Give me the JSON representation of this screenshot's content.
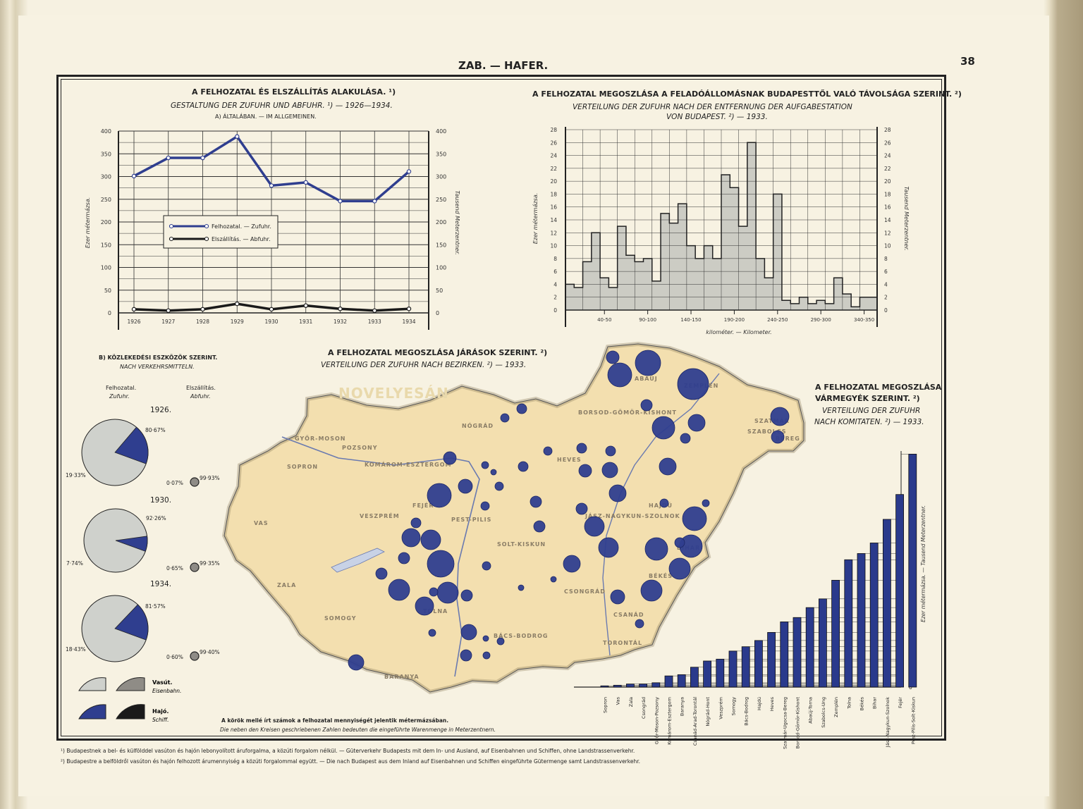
{
  "header": {
    "title": "ZAB. — HAFER.",
    "page_number": "38"
  },
  "line_chart": {
    "title": "A FELHOZATAL ÉS ELSZÁLLÍTÁS ALAKULÁSA. ¹)",
    "subtitle": "GESTALTUNG DER ZUFUHR UND ABFUHR. ¹) — 1926—1934.",
    "section": "A) ÁLTALÁBAN. — IM ALLGEMEINEN.",
    "ylabel_left": "Ezer métermázsa.",
    "ylabel_right": "Tausend Meterzentner."
  },
  "histogram": {
    "title": "A FELHOZATAL MEGOSZLÁSA A FELADÓÁLLOMÁSNAK BUDAPESTTŐL VALÓ TÁVOLSÁGA SZERINT. ²)",
    "subtitle1": "VERTEILUNG DER ZUFUHR NACH DER ENTFERNUNG DER AUFGABESTATION",
    "subtitle2": "VON BUDAPEST. ²) — 1933.",
    "ylabel_left": "Ezer métermázsa.",
    "ylabel_right": "Tausend Meterzentner.",
    "xlabel": "kilométer. — Kilometer."
  },
  "pies": {
    "title": "B) KÖZLEKEDÉSI ESZKÖZÖK SZERINT.",
    "subtitle": "NACH VERKEHRSMITTELN.",
    "col1": "Felhozatal.",
    "col1_de": "Zufuhr.",
    "col2": "Elszállítás.",
    "col2_de": "Abfuhr.",
    "legend": {
      "rail": "Vasút.",
      "rail_de": "Eisenbahn.",
      "ship": "Hajó.",
      "ship_de": "Schiff."
    }
  },
  "map": {
    "title": "A FELHOZATAL MEGOSZLÁSA JÁRÁSOK SZERINT. ²)",
    "subtitle": "VERTEILUNG DER ZUFUHR NACH BEZIRKEN. ²) — 1933.",
    "note1": "A körök mellé írt számok a felhozatal mennyiségét jelentik métermázsában.",
    "note2": "Die neben den Kreisen geschriebenen Zahlen bedeuten die eingeführte Warenmenge in Meterzentnern.",
    "regions": [
      "SOPRON",
      "GYŐR-MOSON",
      "POZSONY",
      "KOMÁROM-ESZTERGOM",
      "VESZPRÉM",
      "VAS",
      "ZALA",
      "SOMOGY",
      "BARANYA",
      "TOLNA",
      "FEJÉR",
      "PEST-PILIS",
      "SOLT-KISKUN",
      "NÓGRÁD",
      "HEVES",
      "BORSOD-GÖMÖR-KISHONT",
      "ZEMPLÉN",
      "SZABOLCS",
      "JÁSZ-NAGYKUN-SZOLNOK",
      "BÉKÉS",
      "CSONGRÁD",
      "CSANÁD",
      "TORONTÁL",
      "BIHAR",
      "HAJDÚ",
      "BÁCS-BODROG",
      "ABAÚJ",
      "BEREG",
      "SZATMÁR",
      "NOVELYESÁN"
    ]
  },
  "county_chart": {
    "title1": "A FELHOZATAL MEGOSZLÁSA",
    "title2": "VÁRMEGYÉK SZERINT. ²)",
    "subtitle1": "VERTEILUNG DER ZUFUHR",
    "subtitle2": "NACH KOMITATEN. ²) — 1933.",
    "ylabel": "Ezer métermázsa. — Tausend Meterzentner."
  },
  "footnotes": {
    "fn1": "¹) Budapestnek a bel- és külfölddel vasúton és hajón lebonyolított áruforgalma, a közúti forgalom nélkül. — Güterverkehr Budapests mit dem In- und Ausland, auf Eisenbahnen und Schiffen, ohne Landstrassenverkehr.",
    "fn2": "²) Budapestre a belföldről vasúton és hajón felhozott árumennyiség a közúti forgalommal együtt. — Die nach Budapest aus dem Inland auf Eisenbahnen und Schiffen eingeführte Gütermenge samt Landstrassenverkehr."
  },
  "chart_data": [
    {
      "type": "line",
      "x": [
        "1926",
        "1927",
        "1928",
        "1929",
        "1930",
        "1931",
        "1932",
        "1933",
        "1934"
      ],
      "series": [
        {
          "name": "Felhozatal. — Zufuhr.",
          "color": "#2f3e8f",
          "values": [
            301,
            341,
            341,
            388,
            280,
            287,
            246,
            246,
            311
          ]
        },
        {
          "name": "Elszállítás. — Abfuhr.",
          "color": "#1a1a1a",
          "values": [
            8,
            5,
            8,
            20,
            8,
            16,
            9,
            5,
            9
          ]
        }
      ],
      "yticks": [
        0,
        50,
        100,
        150,
        200,
        250,
        300,
        350,
        400
      ],
      "ylim": [
        0,
        400
      ]
    },
    {
      "type": "area",
      "x_tick_labels": [
        "40-50",
        "90-100",
        "140-150",
        "190-200",
        "240-250",
        "290-300",
        "340-350"
      ],
      "bins_km_start": [
        0,
        10,
        20,
        30,
        40,
        50,
        60,
        70,
        80,
        90,
        100,
        110,
        120,
        130,
        140,
        150,
        160,
        170,
        180,
        190,
        200,
        210,
        220,
        230,
        240,
        250,
        260,
        270,
        280,
        290,
        300,
        310,
        320,
        330,
        340,
        350
      ],
      "values": [
        4,
        3.5,
        7.5,
        12,
        5,
        3.5,
        13,
        8.5,
        7.5,
        8,
        4.5,
        15,
        13.5,
        16.5,
        10,
        8,
        10,
        8,
        21,
        19,
        13,
        26,
        8,
        5,
        18,
        1.5,
        1,
        2,
        1,
        1.5,
        1,
        5,
        2.5,
        0.5,
        2,
        2
      ],
      "yticks": [
        0,
        2,
        4,
        6,
        8,
        10,
        12,
        14,
        16,
        18,
        20,
        22,
        24,
        26,
        28
      ],
      "ylim": [
        0,
        28
      ]
    },
    {
      "type": "pie",
      "years": [
        {
          "year": "1926.",
          "zufuhr_rail": "80·67%",
          "zufuhr_ship": "19·33%",
          "abfuhr_rail": "99·93%",
          "abfuhr_ship": "0·07%",
          "zufuhr_rail_pct": 80.67,
          "abfuhr_rail_pct": 99.93
        },
        {
          "year": "1930.",
          "zufuhr_rail": "92·26%",
          "zufuhr_ship": "7·74%",
          "abfuhr_rail": "99·35%",
          "abfuhr_ship": "0·65%",
          "zufuhr_rail_pct": 92.26,
          "abfuhr_rail_pct": 99.35
        },
        {
          "year": "1934.",
          "zufuhr_rail": "81·57%",
          "zufuhr_ship": "18·43%",
          "abfuhr_rail": "99·40%",
          "abfuhr_ship": "0·60%",
          "zufuhr_rail_pct": 81.57,
          "abfuhr_rail_pct": 99.4
        }
      ]
    },
    {
      "type": "bar",
      "categories": [
        "Sopron",
        "Vas",
        "Zala",
        "Csongrád",
        "Győr-Moson-Pozsony",
        "Komárom-Esztergom",
        "Baranya",
        "Csanád-Arad-Torontál",
        "Nógrád-Hont",
        "Veszprém",
        "Somogy",
        "Bács-Bodrog",
        "Hajdú",
        "Heves",
        "Szatmár-Ugocsa-Bereg",
        "Borsod-Gömör-Kishont",
        "Abaúj-Torna",
        "Szabolcs-Ung",
        "Zemplén",
        "Tolna",
        "Békés",
        "Bihar",
        "Jász-Nagykun-Szolnok",
        "Fejér",
        "Pest-Pilis-Solt-Kiskun"
      ],
      "values": [
        0.2,
        0.3,
        0.5,
        0.5,
        0.7,
        1.8,
        2.0,
        3.2,
        4.2,
        4.5,
        5.8,
        6.5,
        7.5,
        8.8,
        10.5,
        11.2,
        12.8,
        14.2,
        17.2,
        20.5,
        21.5,
        23.2,
        27.0,
        31.0,
        37.5
      ],
      "yticks": [
        0,
        2,
        4,
        6,
        8,
        10,
        12,
        14,
        16,
        18,
        20,
        22,
        24,
        26,
        28,
        30,
        32,
        34,
        36
      ],
      "ylim": [
        0,
        38
      ]
    }
  ]
}
